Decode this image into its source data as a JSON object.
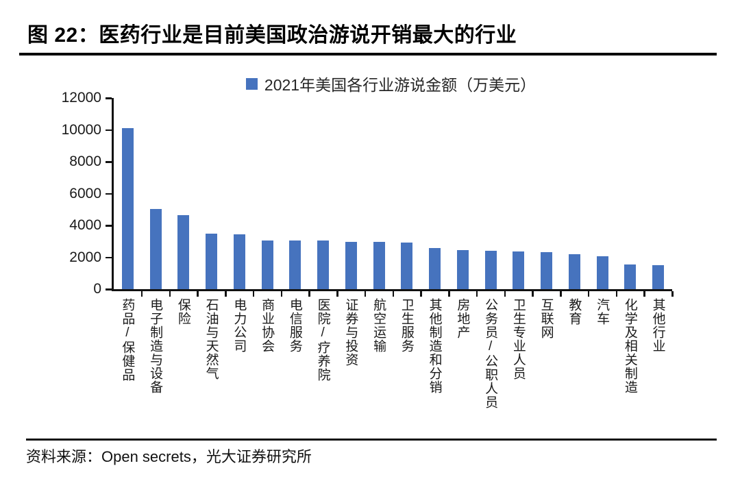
{
  "figure": {
    "title": "图 22：医药行业是目前美国政治游说开销最大的行业",
    "source": "资料来源：Open secrets，光大证券研究所"
  },
  "chart_data": {
    "type": "bar",
    "title": "图 22：医药行业是目前美国政治游说开销最大的行业",
    "legend": "2021年美国各行业游说金额（万美元）",
    "legend_position": "top-center",
    "categories": [
      "药品/保健品",
      "电子制造与设备",
      "保险",
      "石油与天然气",
      "电力公司",
      "商业协会",
      "电信服务",
      "医院/疗养院",
      "证券与投资",
      "航空运输",
      "卫生服务",
      "其他制造和分销",
      "房地产",
      "公务员/公职人员",
      "卫生专业人员",
      "互联网",
      "教育",
      "汽车",
      "化学及相关制造",
      "其他行业"
    ],
    "values": [
      10100,
      5050,
      4650,
      3500,
      3450,
      3050,
      3060,
      3050,
      2950,
      2950,
      2940,
      2600,
      2450,
      2400,
      2350,
      2330,
      2180,
      2080,
      1550,
      1500
    ],
    "xlabel": "",
    "ylabel": "",
    "ylim": [
      0,
      12000
    ],
    "yticks": [
      0,
      2000,
      4000,
      6000,
      8000,
      10000,
      12000
    ],
    "grid": false,
    "bar_color": "#4673BE",
    "axis_color": "#111111"
  }
}
